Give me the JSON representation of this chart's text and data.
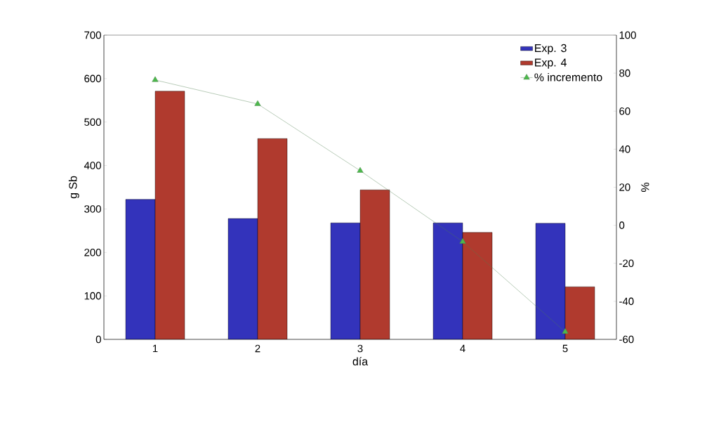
{
  "chart_data": {
    "type": "bar",
    "categories": [
      "1",
      "2",
      "3",
      "4",
      "5"
    ],
    "series": [
      {
        "name": "Exp. 3",
        "color": "#3333bb",
        "values": [
          322,
          278,
          268,
          268,
          267
        ]
      },
      {
        "name": "Exp. 4",
        "color": "#b03a2e",
        "values": [
          571,
          462,
          344,
          246,
          121
        ]
      },
      {
        "name": "% incremento",
        "type": "line",
        "axis": "y2",
        "color": "#4f7f4f",
        "marker": "triangle",
        "values": [
          76.4,
          63.8,
          28.7,
          -8.6,
          -56
        ]
      }
    ],
    "xlabel": "día",
    "ylabel": "g Sb",
    "y2label": "%",
    "ylim": [
      0,
      700
    ],
    "yticks": [
      0,
      100,
      200,
      300,
      400,
      500,
      600,
      700
    ],
    "y2lim": [
      -60,
      100
    ],
    "y2ticks": [
      -60,
      -40,
      -20,
      0,
      20,
      40,
      60,
      80,
      100
    ],
    "legend": "top right"
  }
}
